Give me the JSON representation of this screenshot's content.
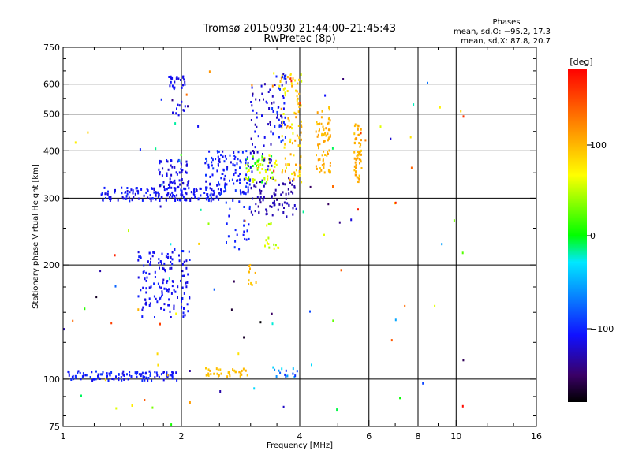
{
  "chart_data": {
    "type": "scatter",
    "title": "Tromsø 20150930 21:44:00–21:45:43",
    "subtitle": "RwPretec (8p)",
    "xlabel": "Frequency [MHz]",
    "ylabel": "Stationary phase Virtual Height [km]",
    "x_scale": "log",
    "y_scale": "log",
    "xlim": [
      1,
      16
    ],
    "ylim": [
      75,
      750
    ],
    "grid": true,
    "x_ticks": [
      "1",
      "2",
      "4",
      "6",
      "8",
      "10",
      "16"
    ],
    "y_ticks": [
      "75",
      "100",
      "200",
      "300",
      "400",
      "500",
      "600",
      "750"
    ],
    "phases_box": {
      "title": "Phases",
      "line1": "mean, sd,O: −95.2, 17.3",
      "line2": "mean, sd,X:  87.8, 20.7"
    },
    "colorbar": {
      "label": "[deg]",
      "range": [
        -180,
        180
      ],
      "ticks": [
        "100",
        "0",
        "−100"
      ],
      "colormap": "rainbow"
    },
    "clusters": [
      {
        "x": [
          1.03,
          1.95
        ],
        "y": [
          99,
          105
        ],
        "n": 110,
        "phase": -105,
        "spread": 12
      },
      {
        "x": [
          2.3,
          2.95
        ],
        "y": [
          101,
          107
        ],
        "n": 35,
        "phase": 95,
        "spread": 8
      },
      {
        "x": [
          3.4,
          3.95
        ],
        "y": [
          101,
          108
        ],
        "n": 15,
        "phase": -70,
        "spread": 40
      },
      {
        "x": [
          1.55,
          2.1
        ],
        "y": [
          145,
          220
        ],
        "n": 140,
        "phase": -110,
        "spread": 10
      },
      {
        "x": [
          1.25,
          2.6
        ],
        "y": [
          295,
          320
        ],
        "n": 160,
        "phase": -110,
        "spread": 12
      },
      {
        "x": [
          1.75,
          2.1
        ],
        "y": [
          320,
          380
        ],
        "n": 60,
        "phase": -115,
        "spread": 10
      },
      {
        "x": [
          2.3,
          3.0
        ],
        "y": [
          305,
          400
        ],
        "n": 120,
        "phase": -105,
        "spread": 15
      },
      {
        "x": [
          2.6,
          3.0
        ],
        "y": [
          220,
          300
        ],
        "n": 25,
        "phase": -100,
        "spread": 10
      },
      {
        "x": [
          3.0,
          3.9
        ],
        "y": [
          270,
          340
        ],
        "n": 80,
        "phase": -130,
        "spread": 8
      },
      {
        "x": [
          2.9,
          3.5
        ],
        "y": [
          330,
          390
        ],
        "n": 60,
        "phase": 40,
        "spread": 50
      },
      {
        "x": [
          3.0,
          3.4
        ],
        "y": [
          350,
          600
        ],
        "n": 50,
        "phase": -120,
        "spread": 15
      },
      {
        "x": [
          3.55,
          4.05
        ],
        "y": [
          330,
          640
        ],
        "n": 90,
        "phase": 85,
        "spread": 30
      },
      {
        "x": [
          3.4,
          3.7
        ],
        "y": [
          420,
          640
        ],
        "n": 40,
        "phase": -110,
        "spread": 20
      },
      {
        "x": [
          4.4,
          4.8
        ],
        "y": [
          350,
          520
        ],
        "n": 70,
        "phase": 100,
        "spread": 12
      },
      {
        "x": [
          5.5,
          5.75
        ],
        "y": [
          330,
          470
        ],
        "n": 55,
        "phase": 100,
        "spread": 12
      },
      {
        "x": [
          3.25,
          3.55
        ],
        "y": [
          220,
          260
        ],
        "n": 15,
        "phase": 55,
        "spread": 15
      },
      {
        "x": [
          2.95,
          3.1
        ],
        "y": [
          175,
          200
        ],
        "n": 10,
        "phase": 95,
        "spread": 10
      },
      {
        "x": [
          1.85,
          2.05
        ],
        "y": [
          580,
          630
        ],
        "n": 25,
        "phase": -110,
        "spread": 10
      },
      {
        "x": [
          1.9,
          2.05
        ],
        "y": [
          495,
          540
        ],
        "n": 10,
        "phase": -110,
        "spread": 10
      },
      {
        "x": [
          1.0,
          10.5
        ],
        "y": [
          75,
          650
        ],
        "n": 110,
        "phase": 0,
        "spread": 180
      }
    ]
  }
}
